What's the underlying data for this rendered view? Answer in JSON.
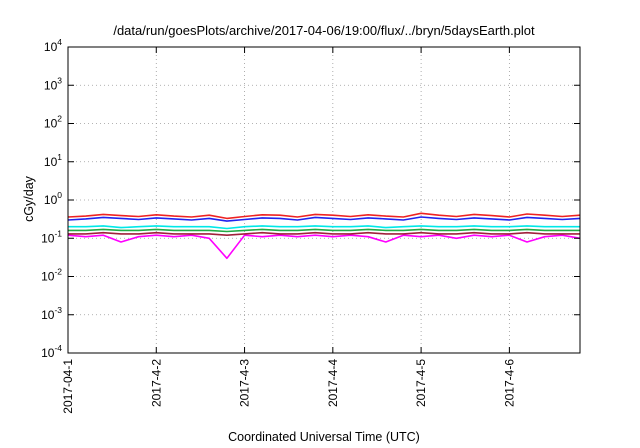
{
  "chart_data": {
    "type": "line",
    "title": "/data/run/goesPlots/archive/2017-04-06/19:00/flux/../bryn/5daysEarth.plot",
    "xlabel": "Coordinated Universal Time (UTC)",
    "ylabel": "cGy/day",
    "yscale": "log",
    "ylim": [
      0.0001,
      10000
    ],
    "xlim": [
      0,
      5.8
    ],
    "grid": true,
    "legend": "none",
    "x_ticks": [
      {
        "value": 0,
        "label": "2017-04-1"
      },
      {
        "value": 1,
        "label": "2017-4-2"
      },
      {
        "value": 2,
        "label": "2017-4-3"
      },
      {
        "value": 3,
        "label": "2017-4-4"
      },
      {
        "value": 4,
        "label": "2017-4-5"
      },
      {
        "value": 5,
        "label": "2017-4-6"
      }
    ],
    "y_ticks": [
      {
        "value": 0.0001,
        "base": "10",
        "exp": "-4"
      },
      {
        "value": 0.001,
        "base": "10",
        "exp": "-3"
      },
      {
        "value": 0.01,
        "base": "10",
        "exp": "-2"
      },
      {
        "value": 0.1,
        "base": "10",
        "exp": "-1"
      },
      {
        "value": 1,
        "base": "10",
        "exp": "0"
      },
      {
        "value": 10,
        "base": "10",
        "exp": "1"
      },
      {
        "value": 100,
        "base": "10",
        "exp": "2"
      },
      {
        "value": 1000,
        "base": "10",
        "exp": "3"
      },
      {
        "value": 10000,
        "base": "10",
        "exp": "4"
      }
    ],
    "x": [
      0.0,
      0.2,
      0.4,
      0.6,
      0.8,
      1.0,
      1.2,
      1.4,
      1.6,
      1.8,
      2.0,
      2.2,
      2.4,
      2.6,
      2.8,
      3.0,
      3.2,
      3.4,
      3.6,
      3.8,
      4.0,
      4.2,
      4.4,
      4.6,
      4.8,
      5.0,
      5.2,
      5.4,
      5.6,
      5.8
    ],
    "series": [
      {
        "color": "#ff00ff",
        "values": [
          0.12,
          0.11,
          0.12,
          0.08,
          0.11,
          0.12,
          0.11,
          0.12,
          0.1,
          0.03,
          0.12,
          0.11,
          0.12,
          0.11,
          0.12,
          0.11,
          0.12,
          0.11,
          0.08,
          0.12,
          0.11,
          0.12,
          0.1,
          0.12,
          0.11,
          0.12,
          0.08,
          0.11,
          0.12,
          0.1
        ]
      },
      {
        "color": "#a0203a",
        "values": [
          0.13,
          0.13,
          0.14,
          0.13,
          0.13,
          0.14,
          0.13,
          0.13,
          0.13,
          0.12,
          0.13,
          0.14,
          0.13,
          0.13,
          0.14,
          0.13,
          0.13,
          0.14,
          0.13,
          0.13,
          0.14,
          0.13,
          0.13,
          0.14,
          0.13,
          0.13,
          0.14,
          0.13,
          0.13,
          0.13
        ]
      },
      {
        "color": "#22aa44",
        "values": [
          0.16,
          0.16,
          0.17,
          0.16,
          0.16,
          0.17,
          0.16,
          0.16,
          0.16,
          0.15,
          0.16,
          0.17,
          0.16,
          0.16,
          0.17,
          0.16,
          0.16,
          0.17,
          0.16,
          0.16,
          0.17,
          0.16,
          0.16,
          0.17,
          0.16,
          0.16,
          0.17,
          0.16,
          0.16,
          0.16
        ]
      },
      {
        "color": "#00e8e8",
        "values": [
          0.2,
          0.2,
          0.21,
          0.19,
          0.2,
          0.21,
          0.2,
          0.2,
          0.2,
          0.18,
          0.2,
          0.21,
          0.2,
          0.2,
          0.21,
          0.2,
          0.2,
          0.21,
          0.19,
          0.2,
          0.21,
          0.2,
          0.2,
          0.21,
          0.2,
          0.2,
          0.21,
          0.2,
          0.2,
          0.2
        ]
      },
      {
        "color": "#2222ee",
        "values": [
          0.3,
          0.32,
          0.35,
          0.33,
          0.31,
          0.34,
          0.32,
          0.3,
          0.33,
          0.28,
          0.31,
          0.34,
          0.33,
          0.3,
          0.35,
          0.33,
          0.31,
          0.34,
          0.32,
          0.3,
          0.36,
          0.33,
          0.31,
          0.34,
          0.32,
          0.3,
          0.35,
          0.33,
          0.31,
          0.33
        ]
      },
      {
        "color": "#ee2222",
        "values": [
          0.36,
          0.38,
          0.42,
          0.39,
          0.37,
          0.41,
          0.38,
          0.36,
          0.4,
          0.33,
          0.37,
          0.41,
          0.4,
          0.36,
          0.42,
          0.4,
          0.37,
          0.41,
          0.38,
          0.36,
          0.45,
          0.4,
          0.37,
          0.42,
          0.39,
          0.36,
          0.43,
          0.4,
          0.37,
          0.4
        ]
      }
    ]
  }
}
